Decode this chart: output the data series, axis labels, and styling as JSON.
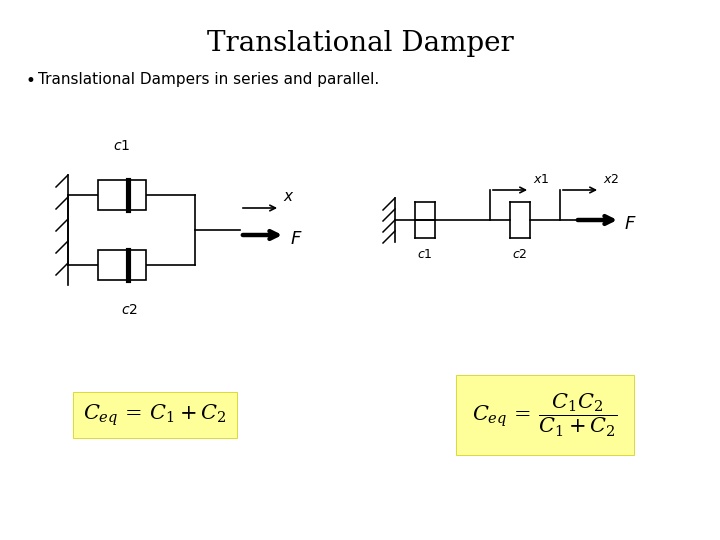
{
  "title": "Translational Damper",
  "subtitle": "Translational Dampers in series and parallel.",
  "bg_color": "#ffffff",
  "title_fontsize": 20,
  "subtitle_fontsize": 11,
  "formula_bg": "#ffff99",
  "formula_parallel": "$C_{eq}\\, =\\, C_1 + C_2$",
  "formula_series_num": "$C_1 C_2$",
  "formula_series_den": "$C_1 + C_2$"
}
